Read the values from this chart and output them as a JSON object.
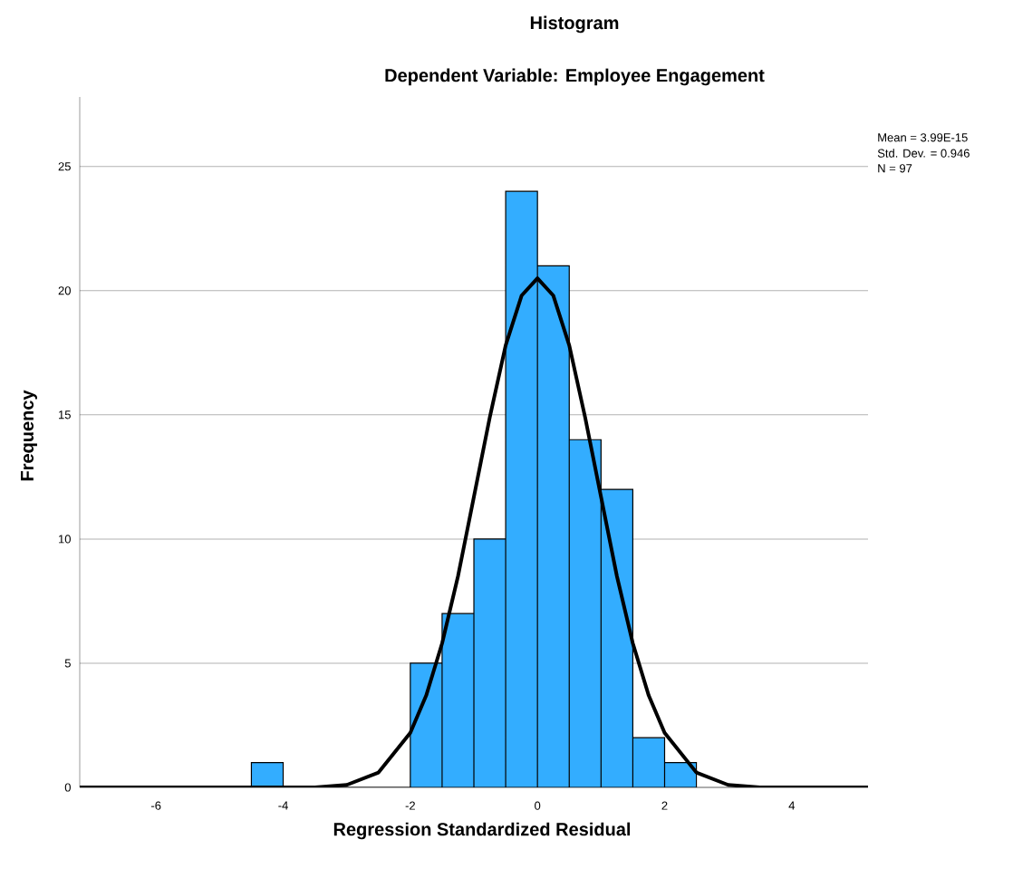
{
  "chart_data": {
    "type": "histogram",
    "title": "Histogram",
    "subtitle": "Dependent Variable: Employee Engagement",
    "xlabel": "Regression Standardized Residual",
    "ylabel": "Frequency",
    "bins": [
      -4.5,
      -4,
      -3.5,
      -3,
      -2.5,
      -2,
      -1.5,
      -1,
      -0.5,
      0,
      0.5,
      1,
      1.5,
      2,
      2.5
    ],
    "values": [
      1,
      0,
      0,
      0,
      0,
      5,
      7,
      10,
      24,
      21,
      14,
      12,
      2,
      1
    ],
    "color": "#33adff",
    "series": [
      {
        "type": "line",
        "color": "#000000",
        "x": [
          -7.2,
          -4.5,
          -4,
          -3.5,
          -3,
          -2.5,
          -2,
          -1.75,
          -1.5,
          -1.25,
          -1,
          -0.75,
          -0.5,
          -0.25,
          0,
          0.25,
          0.5,
          0.75,
          1,
          1.25,
          1.5,
          1.75,
          2,
          2.5,
          3,
          3.5,
          4,
          4.5,
          5.2
        ],
        "values": [
          0,
          0,
          0,
          0,
          0.1,
          0.6,
          2.2,
          3.7,
          5.8,
          8.5,
          11.7,
          14.9,
          17.8,
          19.8,
          20.5,
          19.8,
          17.8,
          14.9,
          11.7,
          8.5,
          5.8,
          3.7,
          2.2,
          0.6,
          0.1,
          0,
          0,
          0,
          0
        ]
      }
    ],
    "xlim": [
      -7.2,
      5.2
    ],
    "ylim": [
      0,
      27.8
    ],
    "xticks": [
      -6,
      -4,
      -2,
      0,
      2,
      4
    ],
    "yticks": [
      0,
      5,
      10,
      15,
      20,
      25
    ],
    "grid": "y",
    "annotations": [
      "Mean = 3.99E-15",
      "Std. Dev. = 0.946",
      "N = 97"
    ]
  }
}
